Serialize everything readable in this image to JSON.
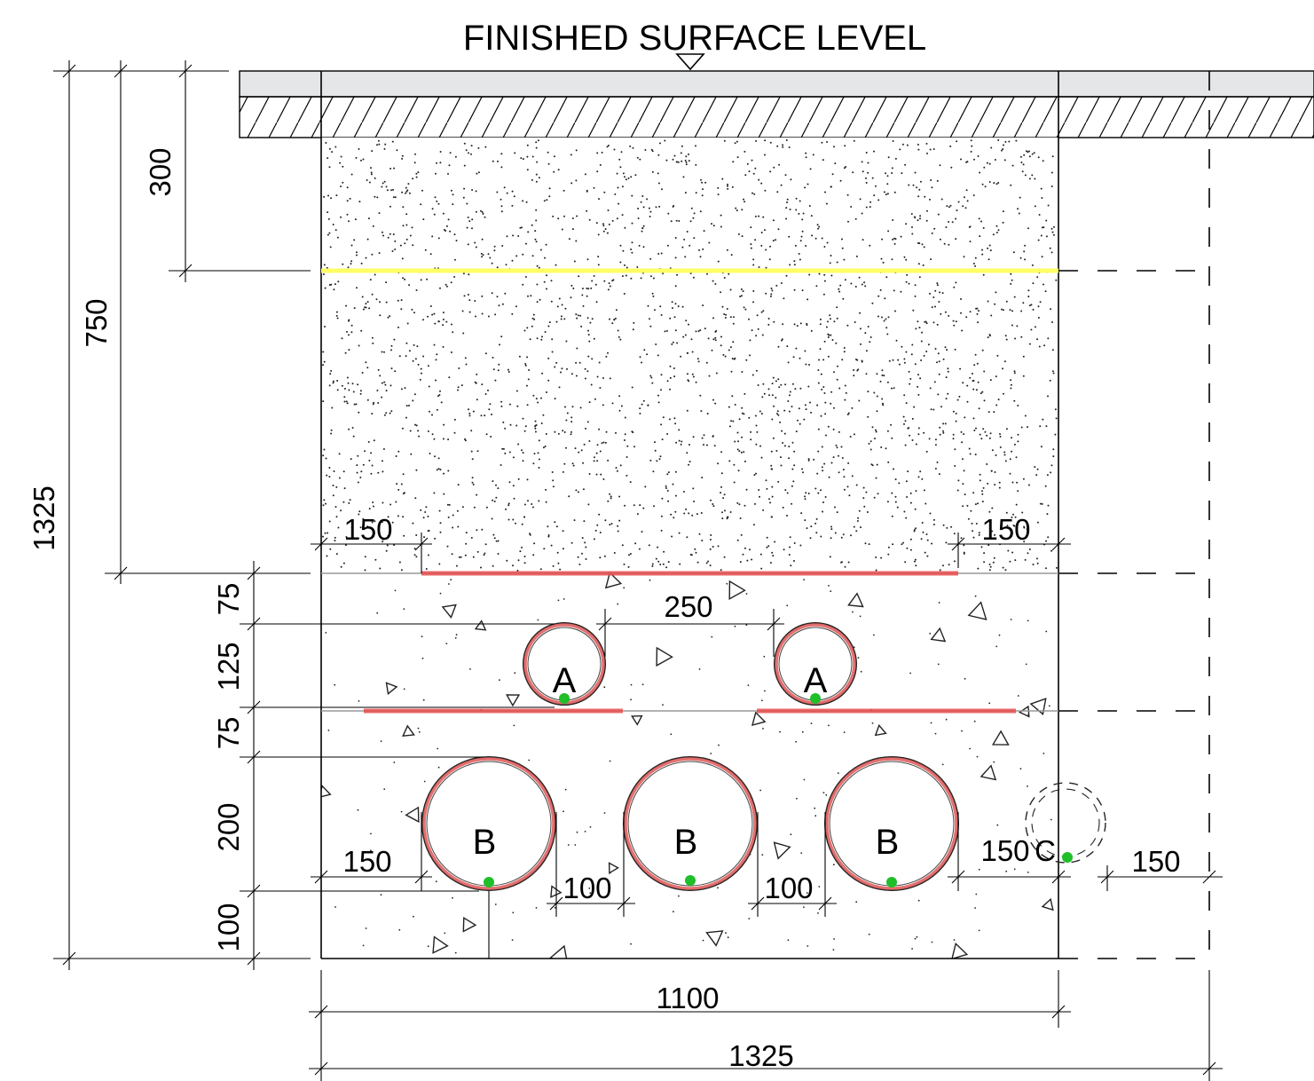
{
  "title": "FINISHED SURFACE LEVEL",
  "colors": {
    "warning_tape": "#e84e4e",
    "marker_line": "#ffff66",
    "earth_dot": "#1fbf2a",
    "surface_layer": "#e5e6e7"
  },
  "dimensions": {
    "left": {
      "depth_300": "300",
      "depth_750": "750",
      "depth_1325": "1325",
      "gap_75_top": "75",
      "pipe_a_125": "125",
      "gap_75_mid": "75",
      "pipe_b_200": "200",
      "bed_100": "100"
    },
    "top": {
      "tape_inset_left": "150",
      "tape_inset_right": "150",
      "pipe_a_spacing": "250"
    },
    "bottom_row": {
      "edge_left": "150",
      "spacing_1": "100",
      "spacing_2": "100",
      "edge_c": "150",
      "edge_right": "150"
    },
    "overall": {
      "trench_width": "1100",
      "total_width": "1325"
    }
  },
  "pipes": {
    "a1": "A",
    "a2": "A",
    "b1": "B",
    "b2": "B",
    "b3": "B",
    "c": "C"
  }
}
